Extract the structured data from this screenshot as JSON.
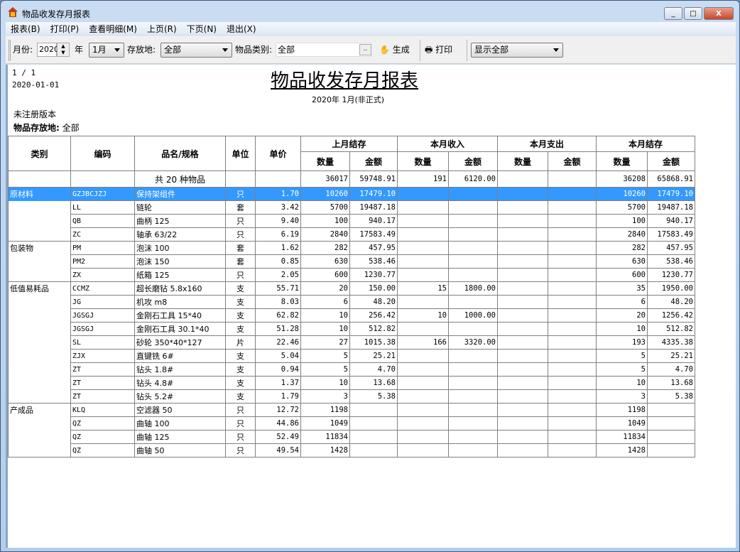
{
  "window": {
    "title": "物品收发存月报表",
    "min": "_",
    "max": "□",
    "close": "X"
  },
  "menu": [
    "报表(B)",
    "打印(P)",
    "查看明细(M)",
    "上页(R)",
    "下页(N)",
    "退出(X)"
  ],
  "toolbar": {
    "month_label": "月份:",
    "year_value": "2020",
    "year_label": "年",
    "month_value": "1月",
    "location_label": "存放地:",
    "location_value": "全部",
    "category_label": "物品类别:",
    "category_value": "全部",
    "browse": "..",
    "generate": "生成",
    "print": "打印",
    "display_value": "显示全部"
  },
  "report": {
    "page": "1 / 1",
    "date": "2020-01-01",
    "title": "物品收发存月报表",
    "subtitle": "2020年 1月(非正式)",
    "unregistered": "未注册版本",
    "location_label": "物品存放地:",
    "location_value": "全部",
    "headers": {
      "category": "类别",
      "code": "编码",
      "name": "品名/规格",
      "unit": "单位",
      "price": "单价",
      "groups": [
        "上月结存",
        "本月收入",
        "本月支出",
        "本月结存"
      ],
      "qty": "数量",
      "amount": "金额"
    },
    "summary": {
      "label": "共 20 种物品",
      "values": [
        "36017",
        "59748.91",
        "191",
        "6120.00",
        "",
        "",
        "36208",
        "65868.91"
      ]
    },
    "rows": [
      [
        "原材料",
        "GZJBCJZJ",
        "保持架组件",
        "只",
        "1.70",
        "10260",
        "17479.10",
        "",
        "",
        "",
        "",
        "10260",
        "17479.10"
      ],
      [
        "",
        "LL",
        "链轮",
        "套",
        "3.42",
        "5700",
        "19487.18",
        "",
        "",
        "",
        "",
        "5700",
        "19487.18"
      ],
      [
        "",
        "QB",
        "曲柄 125",
        "只",
        "9.40",
        "100",
        "940.17",
        "",
        "",
        "",
        "",
        "100",
        "940.17"
      ],
      [
        "",
        "ZC",
        "轴承 63/22",
        "只",
        "6.19",
        "2840",
        "17583.49",
        "",
        "",
        "",
        "",
        "2840",
        "17583.49"
      ],
      [
        "包装物",
        "PM",
        "泡沫 100",
        "套",
        "1.62",
        "282",
        "457.95",
        "",
        "",
        "",
        "",
        "282",
        "457.95"
      ],
      [
        "",
        "PM2",
        "泡沫 150",
        "套",
        "0.85",
        "630",
        "538.46",
        "",
        "",
        "",
        "",
        "630",
        "538.46"
      ],
      [
        "",
        "ZX",
        "纸箱 125",
        "只",
        "2.05",
        "600",
        "1230.77",
        "",
        "",
        "",
        "",
        "600",
        "1230.77"
      ],
      [
        "低值易耗品",
        "CCMZ",
        "超长磨钻 5.8x160",
        "支",
        "55.71",
        "20",
        "150.00",
        "15",
        "1800.00",
        "",
        "",
        "35",
        "1950.00"
      ],
      [
        "",
        "JG",
        "机攻 m8",
        "支",
        "8.03",
        "6",
        "48.20",
        "",
        "",
        "",
        "",
        "6",
        "48.20"
      ],
      [
        "",
        "JGSGJ",
        "金刚石工具 15*40",
        "支",
        "62.82",
        "10",
        "256.42",
        "10",
        "1000.00",
        "",
        "",
        "20",
        "1256.42"
      ],
      [
        "",
        "JGSGJ",
        "金刚石工具 30.1*40",
        "支",
        "51.28",
        "10",
        "512.82",
        "",
        "",
        "",
        "",
        "10",
        "512.82"
      ],
      [
        "",
        "SL",
        "砂轮 350*40*127",
        "片",
        "22.46",
        "27",
        "1015.38",
        "166",
        "3320.00",
        "",
        "",
        "193",
        "4335.38"
      ],
      [
        "",
        "ZJX",
        "直键铣 6#",
        "支",
        "5.04",
        "5",
        "25.21",
        "",
        "",
        "",
        "",
        "5",
        "25.21"
      ],
      [
        "",
        "ZT",
        "钻头 1.8#",
        "支",
        "0.94",
        "5",
        "4.70",
        "",
        "",
        "",
        "",
        "5",
        "4.70"
      ],
      [
        "",
        "ZT",
        "钻头 4.8#",
        "支",
        "1.37",
        "10",
        "13.68",
        "",
        "",
        "",
        "",
        "10",
        "13.68"
      ],
      [
        "",
        "ZT",
        "钻头 5.2#",
        "支",
        "1.79",
        "3",
        "5.38",
        "",
        "",
        "",
        "",
        "3",
        "5.38"
      ],
      [
        "产成品",
        "KLQ",
        "空滤器 50",
        "只",
        "12.72",
        "1198",
        "",
        "",
        "",
        "",
        "",
        "1198",
        ""
      ],
      [
        "",
        "QZ",
        "曲轴 100",
        "只",
        "44.86",
        "1049",
        "",
        "",
        "",
        "",
        "",
        "1049",
        ""
      ],
      [
        "",
        "QZ",
        "曲轴 125",
        "只",
        "52.49",
        "11834",
        "",
        "",
        "",
        "",
        "",
        "11834",
        ""
      ],
      [
        "",
        "QZ",
        "曲轴 50",
        "只",
        "49.54",
        "1428",
        "",
        "",
        "",
        "",
        "",
        "1428",
        ""
      ]
    ],
    "selected_row": 0,
    "colors": {
      "selection": "#3399ff"
    }
  }
}
